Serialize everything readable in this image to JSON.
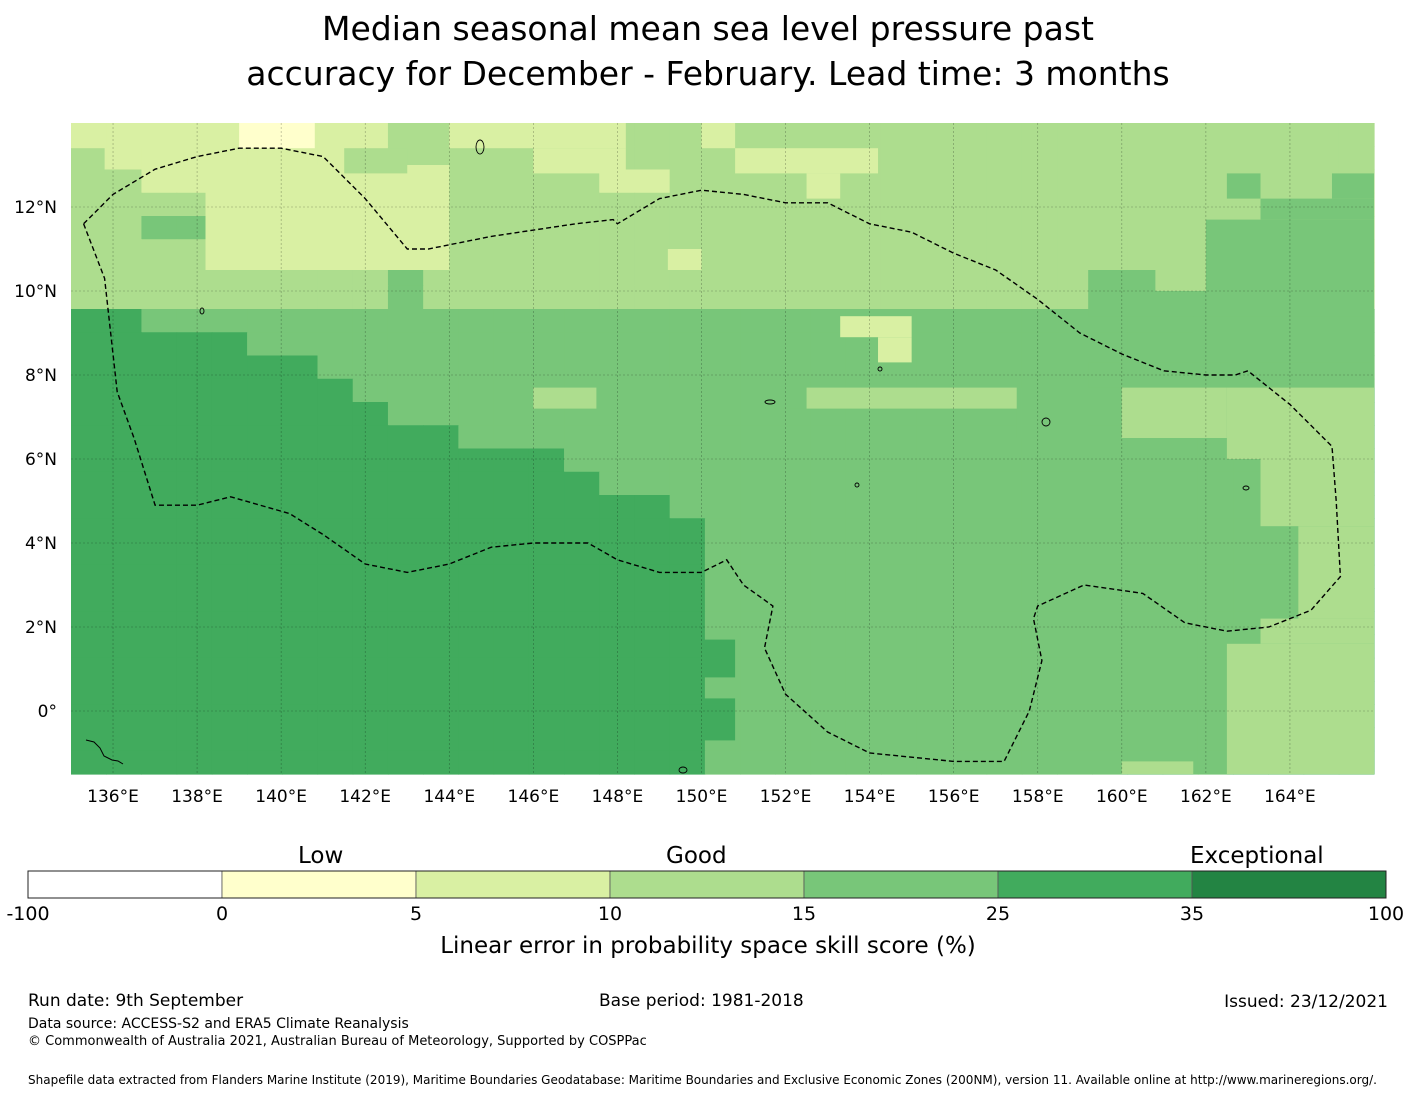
{
  "title_line1": "Median seasonal mean sea level pressure past",
  "title_line2": "accuracy for December - February. Lead time: 3 months",
  "map": {
    "lon_labels": [
      "136°E",
      "138°E",
      "140°E",
      "142°E",
      "144°E",
      "146°E",
      "148°E",
      "150°E",
      "152°E",
      "154°E",
      "156°E",
      "158°E",
      "160°E",
      "162°E",
      "164°E"
    ],
    "lat_labels": [
      "12°N",
      "10°N",
      "8°N",
      "6°N",
      "4°N",
      "2°N",
      "0°"
    ],
    "extent": {
      "lon_min": 135.0,
      "lon_max": 166.0,
      "lat_min": -1.5,
      "lat_max": 14.0
    },
    "grid_resolution_deg": 0.833,
    "cells_cols": 37,
    "cells_rows": 28,
    "rows_top_to_bottom": [
      "2222222223333333333333333333333333333",
      "2222222223333333333333333333333333333",
      "3322222223333332233333333333333333333",
      "3333322222333333333333333333333333333",
      "3344422233333333333333333333333333333",
      "3333433333333333333333333333333333333",
      "3333333334333333333333333333333333333",
      "3333333334333333333333333333333333333",
      "5544444444444444444444444444444444444",
      "5555544444444444444444444444444444444",
      "5555555444444444444444444444444444444",
      "5555555544444444444444444444444444444",
      "5555555554444444444444444444444444444",
      "5555555555544444444444444444444444444",
      "5555555555555544444444444444444444444",
      "5555555555555554444444444444444444444",
      "5555555555555555544444444444444444444",
      "5555555555555555554444444444444444444",
      "5555555555555555554444444444444444444",
      "5555555555555555554444444444444444444",
      "5555555555555555554444444444444444444",
      "5555555555555555554444444444444444444",
      "5555555555555555554444444444444444444",
      "5555555555555555554444444444444444444",
      "5555555555555555554444444444444444444",
      "5555555555555555554444444444444444444",
      "5555555555555555554444444444444444444",
      "5555555555555555554444444444444444444"
    ],
    "patches": [
      {
        "lon": [
          135.0,
          135.8
        ],
        "lat": [
          12.8,
          13.4
        ],
        "cat": 3
      },
      {
        "lon": [
          136.0,
          140.2
        ],
        "lat": [
          13.4,
          14.0
        ],
        "cat": 2
      },
      {
        "lon": [
          139.0,
          140.8
        ],
        "lat": [
          13.4,
          14.0
        ],
        "cat": 1
      },
      {
        "lon": [
          138.2,
          144.0
        ],
        "lat": [
          10.5,
          13.0
        ],
        "cat": 2
      },
      {
        "lon": [
          141.5,
          143.0
        ],
        "lat": [
          12.8,
          13.4
        ],
        "cat": 3
      },
      {
        "lon": [
          144.0,
          148.2
        ],
        "lat": [
          13.4,
          14.0
        ],
        "cat": 2
      },
      {
        "lon": [
          146.0,
          148.2
        ],
        "lat": [
          12.8,
          13.4
        ],
        "cat": 2
      },
      {
        "lon": [
          150.0,
          150.8
        ],
        "lat": [
          13.4,
          14.0
        ],
        "cat": 2
      },
      {
        "lon": [
          150.8,
          154.2
        ],
        "lat": [
          12.8,
          13.4
        ],
        "cat": 2
      },
      {
        "lon": [
          152.5,
          153.3
        ],
        "lat": [
          12.2,
          12.8
        ],
        "cat": 2
      },
      {
        "lon": [
          149.2,
          150.0
        ],
        "lat": [
          10.5,
          11.0
        ],
        "cat": 2
      },
      {
        "lon": [
          153.3,
          155.0
        ],
        "lat": [
          8.9,
          9.4
        ],
        "cat": 2
      },
      {
        "lon": [
          154.2,
          155.0
        ],
        "lat": [
          8.3,
          8.9
        ],
        "cat": 2
      },
      {
        "lon": [
          162.5,
          163.3
        ],
        "lat": [
          12.2,
          12.8
        ],
        "cat": 4
      },
      {
        "lon": [
          159.2,
          160.8
        ],
        "lat": [
          9.4,
          10.5
        ],
        "cat": 4
      },
      {
        "lon": [
          160.0,
          166.0
        ],
        "lat": [
          9.4,
          10.0
        ],
        "cat": 4
      },
      {
        "lon": [
          160.8,
          161.7
        ],
        "lat": [
          10.0,
          10.5
        ],
        "cat": 3
      },
      {
        "lon": [
          162.0,
          166.0
        ],
        "lat": [
          10.0,
          11.7
        ],
        "cat": 4
      },
      {
        "lon": [
          163.3,
          166.0
        ],
        "lat": [
          11.7,
          12.2
        ],
        "cat": 4
      },
      {
        "lon": [
          165.0,
          166.0
        ],
        "lat": [
          12.2,
          12.8
        ],
        "cat": 4
      },
      {
        "lon": [
          161.7,
          166.0
        ],
        "lat": [
          8.3,
          9.4
        ],
        "cat": 4
      },
      {
        "lon": [
          159.2,
          161.0
        ],
        "lat": [
          7.7,
          8.3
        ],
        "cat": 4
      },
      {
        "lon": [
          160.0,
          166.0
        ],
        "lat": [
          7.7,
          8.3
        ],
        "cat": 4
      },
      {
        "lon": [
          160.0,
          162.5
        ],
        "lat": [
          6.5,
          7.7
        ],
        "cat": 3
      },
      {
        "lon": [
          162.5,
          166.0
        ],
        "lat": [
          6.0,
          7.7
        ],
        "cat": 3
      },
      {
        "lon": [
          163.3,
          166.0
        ],
        "lat": [
          4.4,
          6.0
        ],
        "cat": 3
      },
      {
        "lon": [
          164.2,
          166.0
        ],
        "lat": [
          2.2,
          4.4
        ],
        "cat": 3
      },
      {
        "lon": [
          163.3,
          166.0
        ],
        "lat": [
          1.6,
          2.2
        ],
        "cat": 3
      },
      {
        "lon": [
          162.5,
          166.0
        ],
        "lat": [
          -1.5,
          1.6
        ],
        "cat": 3
      },
      {
        "lon": [
          157.5,
          159.2
        ],
        "lat": [
          6.5,
          7.7
        ],
        "cat": 4
      },
      {
        "lon": [
          148.3,
          150.0
        ],
        "lat": [
          6.5,
          7.7
        ],
        "cat": 4
      },
      {
        "lon": [
          146.0,
          147.5
        ],
        "lat": [
          7.2,
          7.7
        ],
        "cat": 3
      },
      {
        "lon": [
          151.7,
          152.5
        ],
        "lat": [
          7.2,
          7.7
        ],
        "cat": 4
      },
      {
        "lon": [
          152.5,
          157.5
        ],
        "lat": [
          7.2,
          7.7
        ],
        "cat": 3
      },
      {
        "lon": [
          160.0,
          161.7
        ],
        "lat": [
          -1.5,
          -1.2
        ],
        "cat": 3
      },
      {
        "lon": [
          150.0,
          150.8
        ],
        "lat": [
          -0.7,
          0.3
        ],
        "cat": 5
      },
      {
        "lon": [
          150.0,
          150.8
        ],
        "lat": [
          0.8,
          1.7
        ],
        "cat": 5
      }
    ],
    "eez_boundary": [
      [
        135.3,
        11.6
      ],
      [
        136.0,
        12.3
      ],
      [
        137.0,
        12.9
      ],
      [
        138.0,
        13.2
      ],
      [
        139.0,
        13.4
      ],
      [
        140.0,
        13.4
      ],
      [
        141.0,
        13.2
      ],
      [
        142.0,
        12.2
      ],
      [
        143.0,
        11.0
      ],
      [
        143.5,
        11.0
      ],
      [
        145.0,
        11.3
      ],
      [
        147.0,
        11.6
      ],
      [
        147.9,
        11.7
      ],
      [
        148.0,
        11.6
      ],
      [
        149.0,
        12.2
      ],
      [
        150.0,
        12.4
      ],
      [
        151.0,
        12.3
      ],
      [
        152.0,
        12.1
      ],
      [
        153.0,
        12.1
      ],
      [
        154.0,
        11.6
      ],
      [
        155.0,
        11.4
      ],
      [
        156.0,
        10.9
      ],
      [
        157.0,
        10.5
      ],
      [
        158.0,
        9.8
      ],
      [
        159.0,
        9.0
      ],
      [
        160.0,
        8.5
      ],
      [
        161.0,
        8.1
      ],
      [
        162.0,
        8.0
      ],
      [
        162.7,
        8.0
      ],
      [
        163.0,
        8.1
      ],
      [
        164.0,
        7.3
      ],
      [
        165.0,
        6.3
      ],
      [
        165.1,
        5.0
      ],
      [
        165.2,
        3.2
      ],
      [
        164.5,
        2.4
      ],
      [
        163.5,
        2.0
      ],
      [
        162.5,
        1.9
      ],
      [
        161.5,
        2.1
      ],
      [
        160.5,
        2.8
      ],
      [
        159.8,
        2.9
      ],
      [
        159.1,
        3.0
      ],
      [
        158.0,
        2.5
      ],
      [
        157.9,
        2.2
      ],
      [
        158.1,
        1.2
      ],
      [
        157.8,
        0.0
      ],
      [
        157.2,
        -1.2
      ],
      [
        156.0,
        -1.2
      ],
      [
        155.0,
        -1.1
      ],
      [
        154.0,
        -1.0
      ],
      [
        153.0,
        -0.5
      ],
      [
        152.0,
        0.4
      ],
      [
        151.5,
        1.5
      ],
      [
        151.7,
        2.5
      ],
      [
        151.0,
        3.0
      ],
      [
        150.6,
        3.6
      ],
      [
        150.0,
        3.3
      ],
      [
        149.0,
        3.3
      ],
      [
        148.0,
        3.6
      ],
      [
        147.3,
        4.0
      ],
      [
        146.0,
        4.0
      ],
      [
        145.0,
        3.9
      ],
      [
        144.0,
        3.5
      ],
      [
        143.0,
        3.3
      ],
      [
        142.0,
        3.5
      ],
      [
        141.0,
        4.2
      ],
      [
        140.2,
        4.7
      ],
      [
        139.5,
        4.9
      ],
      [
        138.8,
        5.1
      ],
      [
        138.0,
        4.9
      ],
      [
        137.0,
        4.9
      ],
      [
        136.5,
        6.5
      ],
      [
        136.1,
        7.6
      ],
      [
        135.8,
        10.3
      ],
      [
        135.3,
        11.6
      ]
    ]
  },
  "legend": {
    "categories": [
      "Low",
      "Good",
      "Exceptional"
    ],
    "ticks": [
      "-100",
      "0",
      "5",
      "10",
      "15",
      "25",
      "35",
      "100"
    ],
    "colors": [
      "#ffffff",
      "#ffffcc",
      "#d9f0a3",
      "#addd8e",
      "#78c679",
      "#41ab5d",
      "#238443"
    ],
    "title": "Linear error in probability space skill score (%)"
  },
  "footer": {
    "run_date": "Run date: 9th September",
    "base_period": "Base period: 1981-2018",
    "issued": "Issued: 23/12/2021",
    "data_source": "Data source: ACCESS-S2 and ERA5 Climate Reanalysis",
    "copyright": "© Commonwealth of Australia 2021, Australian Bureau of Meteorology, Supported by COSPPac",
    "shapefile_credit": "Shapefile data extracted from Flanders Marine Institute (2019), Maritime Boundaries Geodatabase: Maritime Boundaries and Exclusive Economic Zones (200NM), version 11. Available online at http://www.marineregions.org/."
  }
}
